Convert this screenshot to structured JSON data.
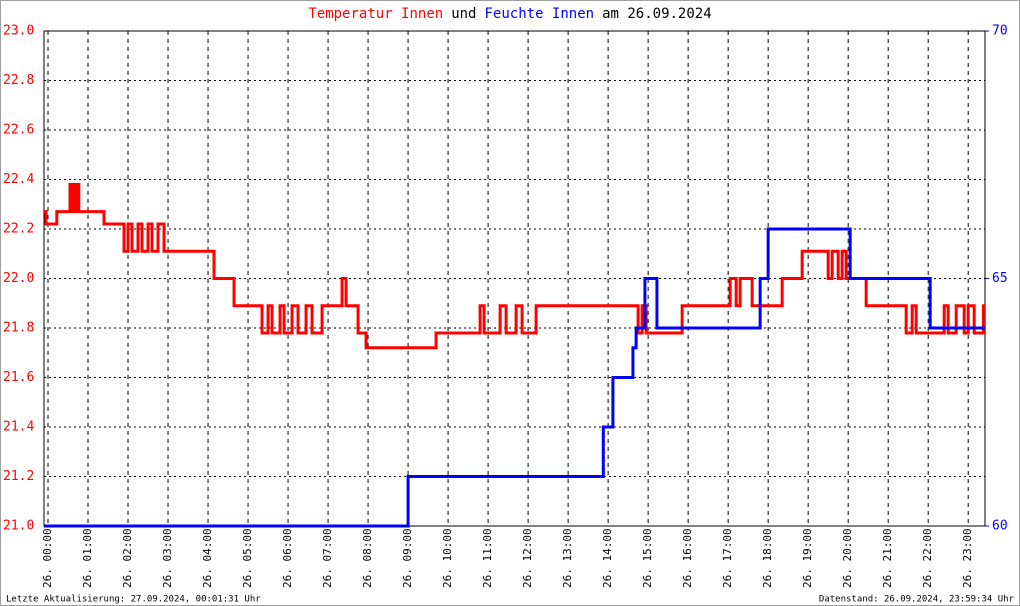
{
  "chart_data": {
    "type": "line",
    "title": {
      "parts": [
        {
          "text": "Temperatur Innen",
          "color": "#ff0000"
        },
        {
          "text": "und",
          "color": "#000000"
        },
        {
          "text": "Feuchte Innen",
          "color": "#0000ff"
        },
        {
          "text": "am 26.09.2024",
          "color": "#000000"
        }
      ]
    },
    "footer_left": "Letzte Aktualisierung: 27.09.2024, 00:01:31 Uhr",
    "footer_right": "Datenstand: 26.09.2024, 23:59:34 Uhr",
    "xlim": [
      -0.1,
      23.42
    ],
    "xticks": [
      {
        "value": 0,
        "label": "26. 00:00"
      },
      {
        "value": 1,
        "label": "26. 01:00"
      },
      {
        "value": 2,
        "label": "26. 02:00"
      },
      {
        "value": 3,
        "label": "26. 03:00"
      },
      {
        "value": 4,
        "label": "26. 04:00"
      },
      {
        "value": 5,
        "label": "26. 05:00"
      },
      {
        "value": 6,
        "label": "26. 06:00"
      },
      {
        "value": 7,
        "label": "26. 07:00"
      },
      {
        "value": 8,
        "label": "26. 08:00"
      },
      {
        "value": 9,
        "label": "26. 09:00"
      },
      {
        "value": 10,
        "label": "26. 10:00"
      },
      {
        "value": 11,
        "label": "26. 11:00"
      },
      {
        "value": 12,
        "label": "26. 12:00"
      },
      {
        "value": 13,
        "label": "26. 13:00"
      },
      {
        "value": 14,
        "label": "26. 14:00"
      },
      {
        "value": 15,
        "label": "26. 15:00"
      },
      {
        "value": 16,
        "label": "26. 16:00"
      },
      {
        "value": 17,
        "label": "26. 17:00"
      },
      {
        "value": 18,
        "label": "26. 18:00"
      },
      {
        "value": 19,
        "label": "26. 19:00"
      },
      {
        "value": 20,
        "label": "26. 20:00"
      },
      {
        "value": 21,
        "label": "26. 21:00"
      },
      {
        "value": 22,
        "label": "26. 22:00"
      },
      {
        "value": 23,
        "label": "26. 23:00"
      }
    ],
    "ylim": [
      21,
      23
    ],
    "yticks": [
      {
        "value": 21,
        "label": "21.0"
      },
      {
        "value": 21.2,
        "label": "21.2"
      },
      {
        "value": 21.4,
        "label": "21.4"
      },
      {
        "value": 21.6,
        "label": "21.6"
      },
      {
        "value": 21.8,
        "label": "21.8"
      },
      {
        "value": 22,
        "label": "22.0"
      },
      {
        "value": 22.2,
        "label": "22.2"
      },
      {
        "value": 22.4,
        "label": "22.4"
      },
      {
        "value": 22.6,
        "label": "22.6"
      },
      {
        "value": 22.8,
        "label": "22.8"
      },
      {
        "value": 23,
        "label": "23.0"
      }
    ],
    "y2lim": [
      60,
      70
    ],
    "y2ticks": [
      60,
      65,
      70
    ],
    "grid": true,
    "series": [
      {
        "name": "Temperatur Innen",
        "color": "#ff0000",
        "axis": "y",
        "x": [
          -0.1,
          -0.05,
          -0.05,
          0.22,
          0.22,
          0.55,
          0.55,
          0.6,
          0.6,
          0.65,
          0.65,
          0.7,
          0.7,
          0.72,
          0.72,
          0.77,
          0.77,
          1.4,
          1.4,
          1.9,
          1.9,
          2.0,
          2.0,
          2.1,
          2.1,
          2.25,
          2.25,
          2.35,
          2.35,
          2.5,
          2.5,
          2.6,
          2.6,
          2.75,
          2.75,
          2.9,
          2.9,
          4.15,
          4.15,
          4.65,
          4.65,
          5.35,
          5.35,
          5.5,
          5.5,
          5.6,
          5.6,
          5.8,
          5.8,
          5.9,
          5.9,
          6.1,
          6.1,
          6.25,
          6.25,
          6.45,
          6.45,
          6.6,
          6.6,
          6.85,
          6.85,
          7.35,
          7.35,
          7.45,
          7.45,
          7.75,
          7.75,
          7.95,
          7.95,
          9.7,
          9.7,
          10.8,
          10.8,
          10.9,
          10.9,
          11.3,
          11.3,
          11.45,
          11.45,
          11.7,
          11.7,
          11.85,
          11.85,
          12.2,
          12.2,
          14.75,
          14.75,
          14.85,
          14.85,
          14.95,
          14.95,
          15.85,
          15.85,
          17.05,
          17.05,
          17.2,
          17.2,
          17.3,
          17.3,
          17.6,
          17.6,
          18.35,
          18.35,
          18.85,
          18.85,
          19.5,
          19.5,
          19.6,
          19.6,
          19.75,
          19.75,
          19.85,
          19.85,
          19.95,
          19.95,
          20.45,
          20.45,
          21.45,
          21.45,
          21.6,
          21.6,
          21.7,
          21.7,
          22.4,
          22.4,
          22.5,
          22.5,
          22.7,
          22.7,
          22.9,
          22.9,
          23.0,
          23.0,
          23.15,
          23.15,
          23.38,
          23.38,
          23.42
        ],
        "values": [
          22.27,
          22.27,
          22.22,
          22.22,
          22.27,
          22.27,
          22.38,
          22.38,
          22.27,
          22.27,
          22.38,
          22.38,
          22.27,
          22.27,
          22.38,
          22.38,
          22.27,
          22.27,
          22.22,
          22.22,
          22.11,
          22.11,
          22.22,
          22.22,
          22.11,
          22.11,
          22.22,
          22.22,
          22.11,
          22.11,
          22.22,
          22.22,
          22.11,
          22.11,
          22.22,
          22.22,
          22.11,
          22.11,
          22.0,
          22.0,
          21.89,
          21.89,
          21.78,
          21.78,
          21.89,
          21.89,
          21.78,
          21.78,
          21.89,
          21.89,
          21.78,
          21.78,
          21.89,
          21.89,
          21.78,
          21.78,
          21.89,
          21.89,
          21.78,
          21.78,
          21.89,
          21.89,
          22.0,
          22.0,
          21.89,
          21.89,
          21.78,
          21.78,
          21.72,
          21.72,
          21.78,
          21.78,
          21.89,
          21.89,
          21.78,
          21.78,
          21.89,
          21.89,
          21.78,
          21.78,
          21.89,
          21.89,
          21.78,
          21.78,
          21.89,
          21.89,
          21.78,
          21.78,
          21.89,
          21.89,
          21.78,
          21.78,
          21.89,
          21.89,
          22.0,
          22.0,
          21.89,
          21.89,
          22.0,
          22.0,
          21.89,
          21.89,
          22.0,
          22.0,
          22.11,
          22.11,
          22.0,
          22.0,
          22.11,
          22.11,
          22.0,
          22.0,
          22.11,
          22.11,
          22.0,
          22.0,
          21.89,
          21.89,
          21.78,
          21.78,
          21.89,
          21.89,
          21.78,
          21.78,
          21.89,
          21.89,
          21.78,
          21.78,
          21.89,
          21.89,
          21.78,
          21.78,
          21.89,
          21.89,
          21.78,
          21.78,
          21.89,
          21.89
        ]
      },
      {
        "name": "Feuchte Innen",
        "color": "#0000ff",
        "axis": "y2",
        "x": [
          -0.1,
          9.0,
          9.0,
          13.88,
          13.88,
          14.12,
          14.12,
          14.62,
          14.62,
          14.7,
          14.7,
          14.92,
          14.92,
          15.22,
          15.22,
          17.8,
          17.8,
          18.0,
          18.0,
          20.05,
          20.05,
          22.05,
          22.05,
          23.42
        ],
        "values": [
          60,
          60,
          61,
          61,
          62,
          62,
          63,
          63,
          63.6,
          63.6,
          64,
          64,
          65,
          65,
          64,
          64,
          65,
          65,
          66,
          66,
          65,
          65,
          64,
          64
        ]
      }
    ]
  }
}
